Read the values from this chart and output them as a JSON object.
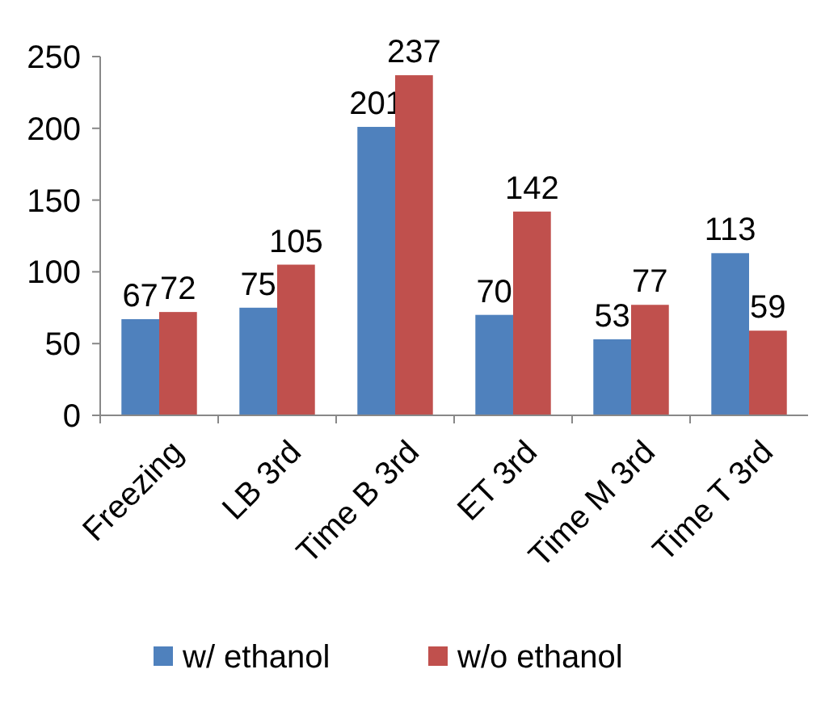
{
  "chart_data": {
    "type": "bar",
    "categories": [
      "Freezing",
      "LB 3rd",
      "Time B 3rd",
      "ET 3rd",
      "Time M 3rd",
      "Time T 3rd"
    ],
    "series": [
      {
        "name": "w/ ethanol",
        "color": "#4f81bd",
        "values": [
          67,
          75,
          201,
          70,
          53,
          113
        ]
      },
      {
        "name": "w/o ethanol",
        "color": "#c0504d",
        "values": [
          72,
          105,
          237,
          142,
          77,
          59
        ]
      }
    ],
    "ylim": [
      0,
      250
    ],
    "yticks": [
      0,
      50,
      100,
      150,
      200,
      250
    ],
    "data_labels": true,
    "legend": "bottom",
    "grid": false
  }
}
